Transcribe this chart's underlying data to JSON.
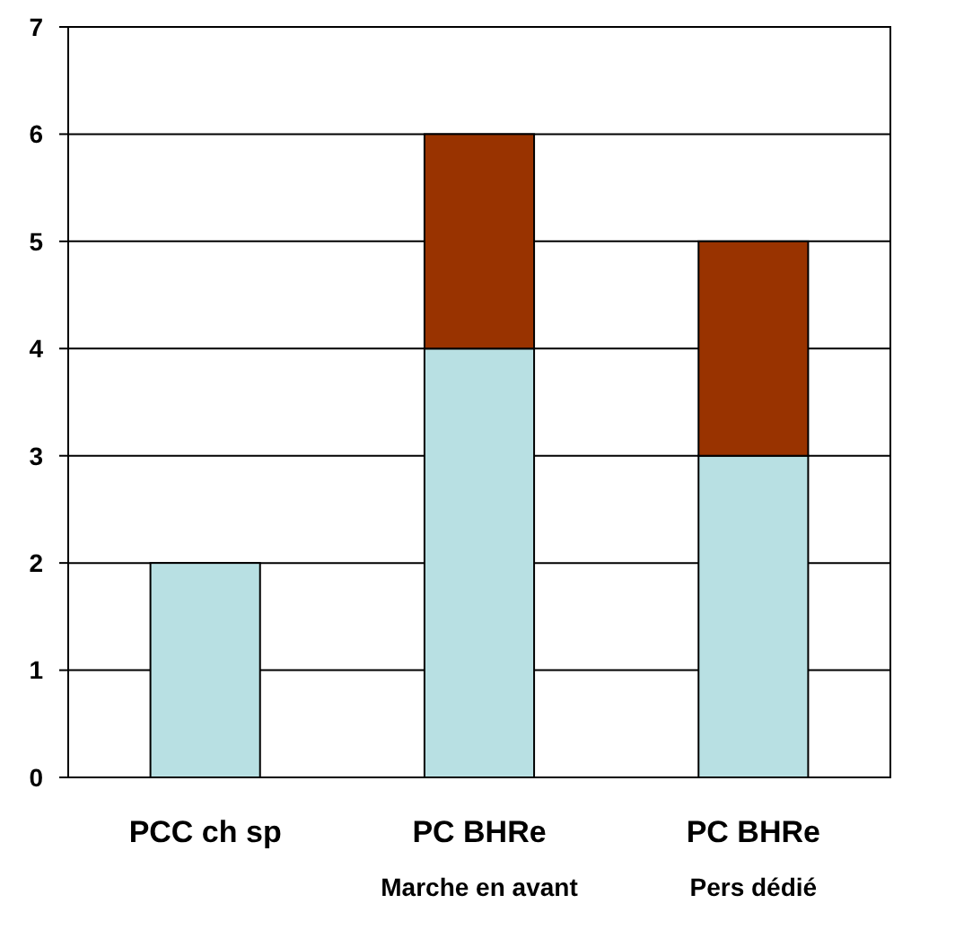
{
  "chart_data": {
    "type": "bar",
    "stacked": true,
    "categories": [
      "PCC ch sp",
      "PC BHRe\nMarche en avant",
      "PC BHRe\nPers dédié"
    ],
    "series": [
      {
        "color": "#b8e0e3",
        "values": [
          2,
          4,
          3
        ]
      },
      {
        "color": "#993300",
        "values": [
          null,
          2,
          2
        ]
      }
    ],
    "ylim": [
      0,
      7
    ],
    "yticks": [
      0,
      1,
      2,
      3,
      4,
      5,
      6,
      7
    ],
    "grid": "y"
  }
}
